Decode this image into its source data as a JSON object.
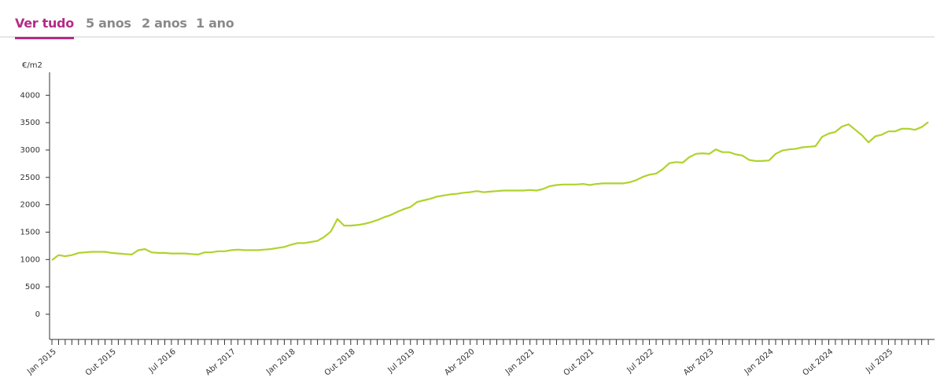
{
  "tabs": [
    "Ver tudo",
    "5 anos",
    "2 anos",
    "1 ano"
  ],
  "chart_data": {
    "type": "line",
    "y_label": "€/m2",
    "categories": [
      "Jan 2015",
      null,
      null,
      null,
      null,
      null,
      null,
      null,
      null,
      "Out 2015",
      null,
      null,
      null,
      null,
      null,
      null,
      null,
      null,
      "Jul 2016",
      null,
      null,
      null,
      null,
      null,
      null,
      null,
      null,
      "Abr 2017",
      null,
      null,
      null,
      null,
      null,
      null,
      null,
      null,
      "Jan 2018",
      null,
      null,
      null,
      null,
      null,
      null,
      null,
      null,
      "Out 2018",
      null,
      null,
      null,
      null,
      null,
      null,
      null,
      null,
      "Jul 2019",
      null,
      null,
      null,
      null,
      null,
      null,
      null,
      null,
      "Abr 2020",
      null,
      null,
      null,
      null,
      null,
      null,
      null,
      null,
      "Jan 2021",
      null,
      null,
      null,
      null,
      null,
      null,
      null,
      null,
      "Out 2021",
      null,
      null,
      null,
      null,
      null,
      null,
      null,
      null,
      "Jul 2022",
      null,
      null,
      null,
      null,
      null,
      null,
      null,
      null,
      "Abr 2023",
      null,
      null,
      null,
      null,
      null,
      null,
      null,
      null,
      "Jan 2024",
      null,
      null,
      null,
      null,
      null,
      null,
      null,
      null,
      "Out 2024",
      null,
      null,
      null,
      null,
      null,
      null,
      null,
      null,
      "Jul 2025",
      null,
      null,
      null,
      null,
      null,
      null
    ],
    "values": [
      990,
      1080,
      1060,
      1080,
      1120,
      1130,
      1140,
      1140,
      1140,
      1120,
      1110,
      1100,
      1090,
      1170,
      1190,
      1130,
      1120,
      1120,
      1110,
      1110,
      1110,
      1100,
      1090,
      1130,
      1130,
      1150,
      1150,
      1170,
      1180,
      1170,
      1170,
      1170,
      1180,
      1190,
      1210,
      1230,
      1270,
      1300,
      1300,
      1320,
      1340,
      1410,
      1510,
      1740,
      1620,
      1620,
      1630,
      1650,
      1680,
      1720,
      1770,
      1810,
      1870,
      1920,
      1960,
      2050,
      2080,
      2110,
      2150,
      2170,
      2190,
      2200,
      2220,
      2230,
      2250,
      2230,
      2240,
      2250,
      2260,
      2260,
      2260,
      2260,
      2270,
      2260,
      2290,
      2340,
      2360,
      2370,
      2370,
      2370,
      2380,
      2360,
      2380,
      2390,
      2390,
      2390,
      2390,
      2410,
      2450,
      2510,
      2550,
      2570,
      2650,
      2760,
      2780,
      2770,
      2870,
      2930,
      2940,
      2930,
      3010,
      2960,
      2960,
      2920,
      2900,
      2820,
      2800,
      2800,
      2810,
      2930,
      2990,
      3010,
      3020,
      3050,
      3060,
      3070,
      3240,
      3300,
      3330,
      3430,
      3470,
      3370,
      3270,
      3140,
      3250,
      3280,
      3340,
      3340,
      3390,
      3390,
      3370,
      3420,
      3510
    ],
    "color": "#b0d22e",
    "ylim": [
      -460,
      4420
    ],
    "yticks": [
      0,
      500,
      1000,
      1500,
      2000,
      2500,
      3000,
      3500,
      4000
    ]
  }
}
